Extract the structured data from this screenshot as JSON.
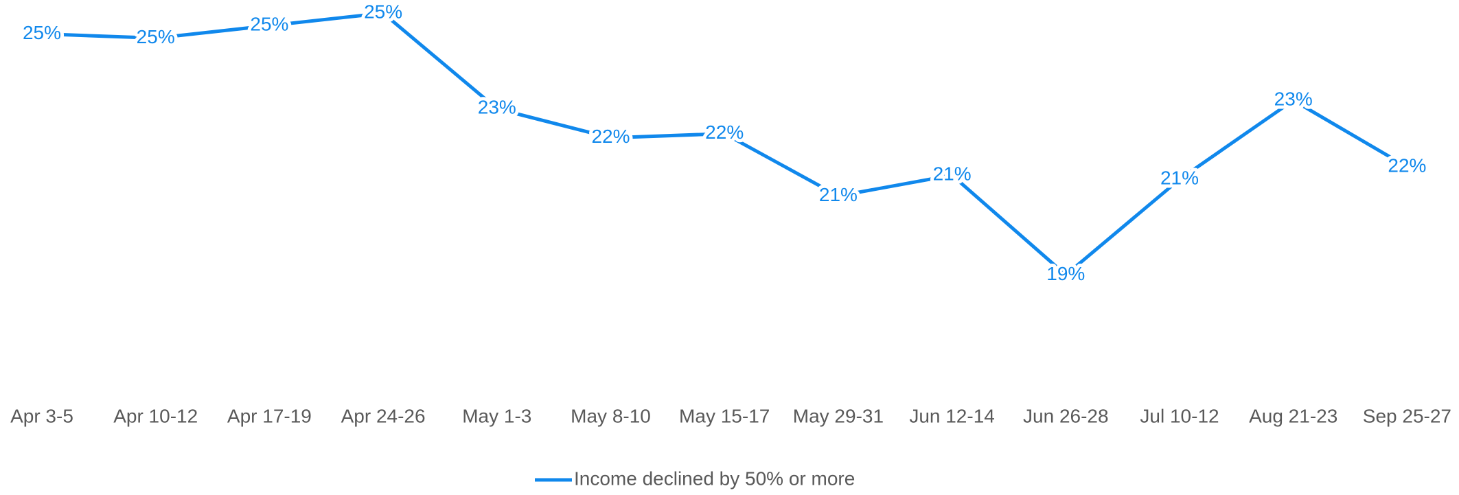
{
  "chart_data": {
    "type": "line",
    "categories": [
      "Apr 3-5",
      "Apr 10-12",
      "Apr 17-19",
      "Apr 24-26",
      "May 1-3",
      "May 8-10",
      "May 15-17",
      "May 29-31",
      "Jun 12-14",
      "Jun 26-28",
      "Jul 10-12",
      "Aug 21-23",
      "Sep 25-27"
    ],
    "series": [
      {
        "name": "Income declined by 50% or more",
        "color": "#1088ec",
        "values": [
          24.8,
          24.7,
          25.0,
          25.3,
          23.0,
          22.3,
          22.4,
          20.9,
          21.4,
          19.0,
          21.3,
          23.2,
          21.6
        ],
        "value_labels": [
          "25%",
          "25%",
          "25%",
          "25%",
          "23%",
          "22%",
          "22%",
          "21%",
          "21%",
          "19%",
          "21%",
          "23%",
          "22%"
        ]
      }
    ],
    "ylim": [
      16,
      25.6
    ],
    "legend": "bottom",
    "grid": false
  }
}
